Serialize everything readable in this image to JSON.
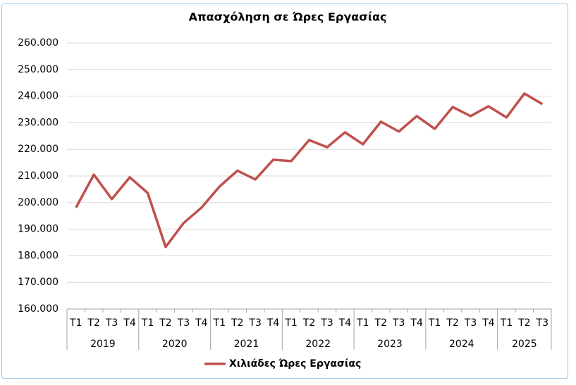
{
  "chart_data": {
    "type": "line",
    "title": "Απασχόληση σε Ώρες Εργασίας",
    "groups": [
      {
        "label": "2019",
        "categories": [
          "T1",
          "T2",
          "T3",
          "T4"
        ]
      },
      {
        "label": "2020",
        "categories": [
          "T1",
          "T2",
          "T3",
          "T4"
        ]
      },
      {
        "label": "2021",
        "categories": [
          "T1",
          "T2",
          "T3",
          "T4"
        ]
      },
      {
        "label": "2022",
        "categories": [
          "T1",
          "T2",
          "T3",
          "T4"
        ]
      },
      {
        "label": "2023",
        "categories": [
          "T1",
          "T2",
          "T3",
          "T4"
        ]
      },
      {
        "label": "2024",
        "categories": [
          "T1",
          "T2",
          "T3",
          "T4"
        ]
      },
      {
        "label": "2025",
        "categories": [
          "T1",
          "T2",
          "T3"
        ]
      }
    ],
    "series": [
      {
        "name": "Χιλιάδες Ώρες Εργασίας",
        "color": "#c0504d",
        "values": [
          198100,
          210500,
          201300,
          209500,
          203600,
          183300,
          192300,
          198100,
          206000,
          212000,
          208700,
          216100,
          215600,
          223500,
          220800,
          226400,
          221900,
          230400,
          226700,
          232500,
          227700,
          235900,
          232500,
          236200,
          232000,
          241000,
          237000
        ]
      }
    ],
    "ylim": [
      160000,
      260000
    ],
    "yticks": [
      {
        "value": 160000,
        "label": "160.000"
      },
      {
        "value": 170000,
        "label": "170.000"
      },
      {
        "value": 180000,
        "label": "180.000"
      },
      {
        "value": 190000,
        "label": "190.000"
      },
      {
        "value": 200000,
        "label": "200.000"
      },
      {
        "value": 210000,
        "label": "210.000"
      },
      {
        "value": 220000,
        "label": "220.000"
      },
      {
        "value": 230000,
        "label": "230.000"
      },
      {
        "value": 240000,
        "label": "240.000"
      },
      {
        "value": 250000,
        "label": "250.000"
      },
      {
        "value": 260000,
        "label": "260.000"
      }
    ],
    "grid": true,
    "legend": "bottom"
  }
}
